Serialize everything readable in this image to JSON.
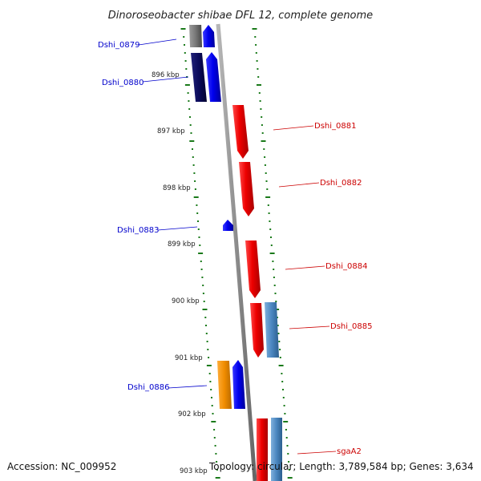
{
  "title": "Dinoroseobacter shibae DFL 12, complete genome",
  "footer": {
    "accession": "Accession: NC_009952",
    "summary": "Topology: circular; Length: 3,789,584 bp; Genes: 3,634"
  },
  "colors": {
    "forward": "#0000ee",
    "reverse": "#dd0000",
    "dark_blue": "#0a0a5a",
    "gray": "#777777",
    "steel_blue": "#4a86c0",
    "orange": "#f08c00",
    "tick_green": "#1a7a1a",
    "backbone": "#8c8c8c"
  },
  "kbp_labels": [
    "896 kbp",
    "897 kbp",
    "898 kbp",
    "899 kbp",
    "900 kbp",
    "901 kbp",
    "902 kbp",
    "903 kbp"
  ],
  "genes": [
    {
      "id": "Dshi_0879",
      "strand": "forward",
      "color": "forward"
    },
    {
      "id": "Dshi_0880",
      "strand": "forward",
      "color": "forward"
    },
    {
      "id": "Dshi_0881",
      "strand": "reverse",
      "color": "reverse"
    },
    {
      "id": "Dshi_0882",
      "strand": "reverse",
      "color": "reverse"
    },
    {
      "id": "Dshi_0883",
      "strand": "forward",
      "color": "forward"
    },
    {
      "id": "Dshi_0884",
      "strand": "reverse",
      "color": "reverse"
    },
    {
      "id": "Dshi_0885",
      "strand": "reverse",
      "color": "reverse"
    },
    {
      "id": "Dshi_0886",
      "strand": "forward",
      "color": "forward"
    },
    {
      "id": "sgaA2",
      "strand": "reverse",
      "color": "reverse"
    }
  ]
}
